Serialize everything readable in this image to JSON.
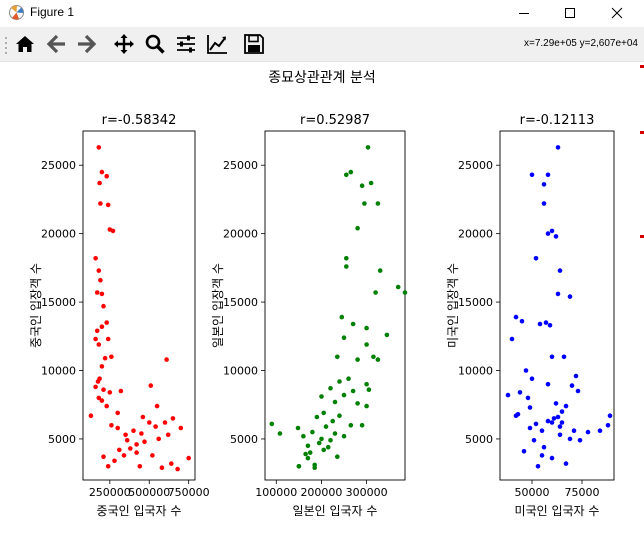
{
  "window": {
    "title": "Figure 1",
    "controls": [
      "minimize",
      "maximize",
      "close"
    ]
  },
  "toolbar": {
    "buttons": [
      "home-icon",
      "back-arrow-icon",
      "forward-arrow-icon",
      "pan-icon",
      "zoom-icon",
      "configure-subplots-icon",
      "edit-axis-icon",
      "save-icon"
    ],
    "coordinates": "x=7.29e+05 y=2,607e+04"
  },
  "figure": {
    "suptitle": "종묘상관관계 분석"
  },
  "chart_data": [
    {
      "type": "scatter",
      "title": "r=-0.58342",
      "xlabel": "중국인 입국자 수",
      "ylabel": "중국인 입장객 수",
      "color": "#ff0000",
      "xlim": [
        80000,
        790000
      ],
      "ylim": [
        2000,
        27500
      ],
      "xticks": [
        250000,
        500000,
        750000
      ],
      "xtick_labels": [
        "250000",
        "500000",
        "750000"
      ],
      "yticks": [
        5000,
        10000,
        15000,
        20000,
        25000
      ],
      "ytick_labels": [
        "5000",
        "10000",
        "15000",
        "20000",
        "25000"
      ],
      "x": [
        180000,
        200000,
        230000,
        185000,
        190000,
        240000,
        250000,
        270000,
        160000,
        180000,
        190000,
        200000,
        170000,
        210000,
        230000,
        200000,
        160000,
        170000,
        180000,
        220000,
        260000,
        240000,
        200000,
        185000,
        175000,
        210000,
        250000,
        320000,
        160000,
        180000,
        200000,
        230000,
        260000,
        300000,
        350000,
        400000,
        460000,
        500000,
        540000,
        600000,
        650000,
        700000,
        620000,
        560000,
        470000,
        420000,
        380000,
        340000,
        280000,
        240000,
        210000,
        310000,
        360000,
        440000,
        520000,
        580000,
        640000,
        750000,
        680000,
        450000,
        300000,
        130000,
        510000,
        550000,
        610000,
        420000
      ],
      "y": [
        26300,
        24500,
        24200,
        23700,
        22200,
        22100,
        20300,
        20200,
        18200,
        17300,
        16600,
        15600,
        15700,
        14700,
        13500,
        13200,
        12300,
        12900,
        11900,
        10900,
        11000,
        12300,
        10300,
        9400,
        9200,
        8600,
        8400,
        8500,
        8800,
        8000,
        7800,
        7400,
        6000,
        5800,
        5300,
        5600,
        6600,
        6200,
        5900,
        6200,
        6500,
        5800,
        5300,
        5000,
        4800,
        4600,
        4300,
        3800,
        3400,
        3000,
        3700,
        4200,
        4900,
        3000,
        3800,
        2900,
        3200,
        3600,
        2800,
        5400,
        6900,
        6700,
        8900,
        7400,
        10800,
        4000
      ]
    },
    {
      "type": "scatter",
      "title": "r=0.52987",
      "xlabel": "일본인 입국자 수",
      "ylabel": "일본인 입장객 수",
      "color": "#008000",
      "xlim": [
        75000,
        385000
      ],
      "ylim": [
        2000,
        27500
      ],
      "xticks": [
        100000,
        200000,
        300000
      ],
      "xtick_labels": [
        "100000",
        "200000",
        "300000"
      ],
      "yticks": [
        5000,
        10000,
        15000,
        20000,
        25000
      ],
      "ytick_labels": [
        "5000",
        "10000",
        "15000",
        "20000",
        "25000"
      ],
      "x": [
        303000,
        255000,
        265000,
        290000,
        310000,
        295000,
        325000,
        280000,
        255000,
        255000,
        330000,
        370000,
        385000,
        320000,
        245000,
        270000,
        300000,
        345000,
        250000,
        300000,
        315000,
        235000,
        280000,
        325000,
        260000,
        240000,
        300000,
        220000,
        270000,
        305000,
        250000,
        200000,
        230000,
        280000,
        300000,
        240000,
        190000,
        205000,
        225000,
        265000,
        290000,
        210000,
        180000,
        230000,
        250000,
        160000,
        200000,
        220000,
        170000,
        195000,
        215000,
        235000,
        165000,
        185000,
        90000,
        108000,
        148000,
        205000,
        170000,
        150000,
        185000,
        150000,
        175000
      ],
      "y": [
        26300,
        24300,
        24500,
        23500,
        23700,
        22200,
        22200,
        20400,
        18200,
        17600,
        17300,
        16100,
        15700,
        15700,
        13900,
        13400,
        13100,
        12600,
        12400,
        11900,
        11000,
        11000,
        10800,
        10800,
        9400,
        9200,
        9000,
        8700,
        8500,
        8600,
        8200,
        8100,
        7700,
        7600,
        7400,
        6700,
        6600,
        6900,
        6300,
        6000,
        6000,
        5900,
        5500,
        5400,
        5200,
        5200,
        5000,
        4900,
        4500,
        4700,
        4400,
        3700,
        3900,
        3100,
        6100,
        5400,
        5800,
        4200,
        3600,
        3000,
        2900,
        3000,
        4000
      ]
    },
    {
      "type": "scatter",
      "title": "r=-0.12113",
      "xlabel": "미국인 입국자 수",
      "ylabel": "미국인 입장객 수",
      "color": "#0000ff",
      "xlim": [
        34000,
        91000
      ],
      "ylim": [
        2000,
        27500
      ],
      "xticks": [
        50000,
        75000
      ],
      "xtick_labels": [
        "50000",
        "75000"
      ],
      "yticks": [
        5000,
        10000,
        15000,
        20000,
        25000
      ],
      "ytick_labels": [
        "5000",
        "10000",
        "15000",
        "20000",
        "25000"
      ],
      "x": [
        63000,
        50000,
        58000,
        56000,
        56000,
        58000,
        60000,
        62000,
        52000,
        64000,
        63000,
        69000,
        42000,
        59000,
        54000,
        57000,
        60000,
        45000,
        40000,
        47000,
        66000,
        58000,
        48000,
        49000,
        44000,
        50000,
        38000,
        43000,
        55000,
        58000,
        61000,
        63000,
        65000,
        67000,
        70000,
        73000,
        84000,
        88000,
        89000,
        52000,
        60000,
        64000,
        64000,
        71000,
        69000,
        74000,
        78000,
        67000,
        60000,
        56000,
        53000,
        51000,
        46000,
        42000,
        49000,
        62000,
        65000,
        72000,
        55000
      ],
      "y": [
        26300,
        24300,
        24300,
        23600,
        22200,
        20000,
        20200,
        19800,
        18200,
        17300,
        15600,
        15400,
        13900,
        13300,
        13400,
        13500,
        11000,
        13600,
        12300,
        10000,
        11000,
        9000,
        8000,
        7300,
        8400,
        9400,
        8200,
        6800,
        5600,
        6300,
        6500,
        6600,
        7000,
        7400,
        8900,
        8500,
        5600,
        6000,
        6700,
        6100,
        6200,
        5900,
        5300,
        5600,
        5000,
        4900,
        5500,
        3200,
        3600,
        4400,
        3000,
        4900,
        4100,
        6700,
        5800,
        7600,
        6200,
        9600,
        3800
      ]
    }
  ]
}
